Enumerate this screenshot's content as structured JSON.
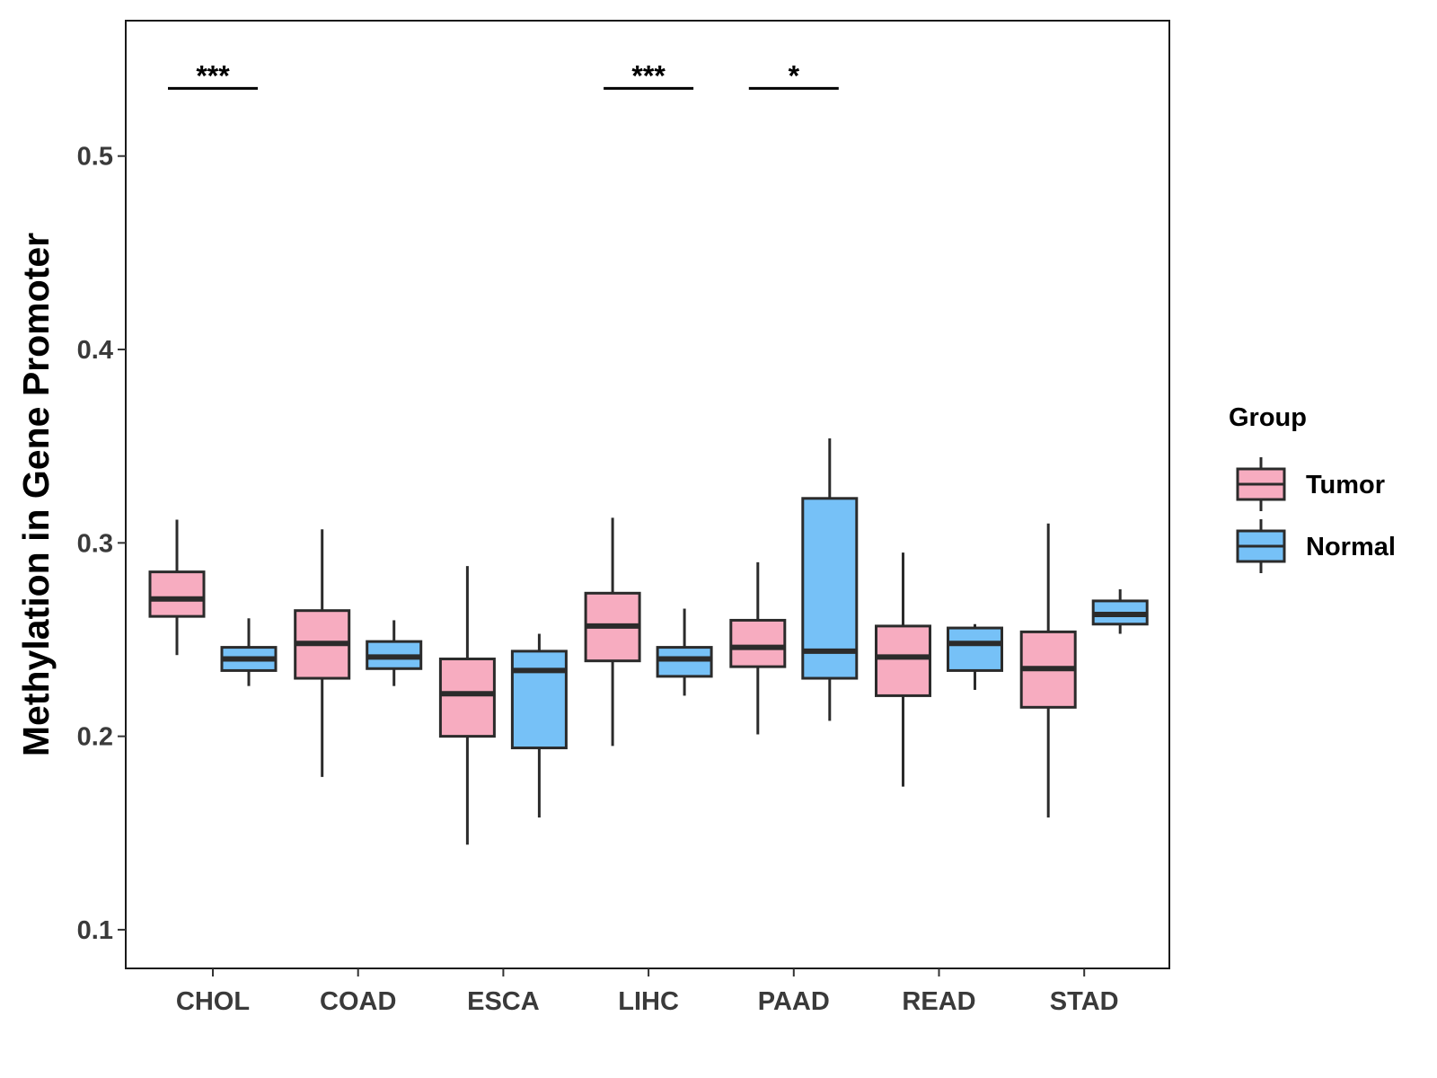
{
  "chart_data": {
    "type": "boxplot",
    "title": "",
    "xlabel": "",
    "ylabel": "Methylation in Gene Promoter",
    "ylim": [
      0.08,
      0.57
    ],
    "yticks": [
      0.1,
      0.2,
      0.3,
      0.4,
      0.5
    ],
    "ytick_labels": [
      "0.1",
      "0.2",
      "0.3",
      "0.4",
      "0.5"
    ],
    "categories": [
      "CHOL",
      "COAD",
      "ESCA",
      "LIHC",
      "PAAD",
      "READ",
      "STAD"
    ],
    "grid": false,
    "legend": {
      "title": "Group",
      "position": "right",
      "entries": [
        {
          "name": "Tumor",
          "color": "#F7ACC0"
        },
        {
          "name": "Normal",
          "color": "#76C1F7"
        }
      ]
    },
    "series": [
      {
        "name": "Tumor",
        "color": "#F7ACC0",
        "boxes": [
          {
            "category": "CHOL",
            "min": 0.242,
            "q1": 0.262,
            "median": 0.271,
            "q3": 0.285,
            "max": 0.312
          },
          {
            "category": "COAD",
            "min": 0.179,
            "q1": 0.23,
            "median": 0.248,
            "q3": 0.265,
            "max": 0.307
          },
          {
            "category": "ESCA",
            "min": 0.144,
            "q1": 0.2,
            "median": 0.222,
            "q3": 0.24,
            "max": 0.288
          },
          {
            "category": "LIHC",
            "min": 0.195,
            "q1": 0.239,
            "median": 0.257,
            "q3": 0.274,
            "max": 0.313
          },
          {
            "category": "PAAD",
            "min": 0.201,
            "q1": 0.236,
            "median": 0.246,
            "q3": 0.26,
            "max": 0.29
          },
          {
            "category": "READ",
            "min": 0.174,
            "q1": 0.221,
            "median": 0.241,
            "q3": 0.257,
            "max": 0.295
          },
          {
            "category": "STAD",
            "min": 0.158,
            "q1": 0.215,
            "median": 0.235,
            "q3": 0.254,
            "max": 0.31
          }
        ]
      },
      {
        "name": "Normal",
        "color": "#76C1F7",
        "boxes": [
          {
            "category": "CHOL",
            "min": 0.226,
            "q1": 0.234,
            "median": 0.24,
            "q3": 0.246,
            "max": 0.261
          },
          {
            "category": "COAD",
            "min": 0.226,
            "q1": 0.235,
            "median": 0.241,
            "q3": 0.249,
            "max": 0.26
          },
          {
            "category": "ESCA",
            "min": 0.158,
            "q1": 0.194,
            "median": 0.234,
            "q3": 0.244,
            "max": 0.253
          },
          {
            "category": "LIHC",
            "min": 0.221,
            "q1": 0.231,
            "median": 0.24,
            "q3": 0.246,
            "max": 0.266
          },
          {
            "category": "PAAD",
            "min": 0.208,
            "q1": 0.23,
            "median": 0.244,
            "q3": 0.323,
            "max": 0.354
          },
          {
            "category": "READ",
            "min": 0.224,
            "q1": 0.234,
            "median": 0.248,
            "q3": 0.256,
            "max": 0.258
          },
          {
            "category": "STAD",
            "min": 0.253,
            "q1": 0.258,
            "median": 0.263,
            "q3": 0.27,
            "max": 0.276
          }
        ]
      }
    ],
    "annotations": [
      {
        "category": "CHOL",
        "label": "***",
        "y": 0.535
      },
      {
        "category": "LIHC",
        "label": "***",
        "y": 0.535
      },
      {
        "category": "PAAD",
        "label": "*",
        "y": 0.535
      }
    ]
  }
}
